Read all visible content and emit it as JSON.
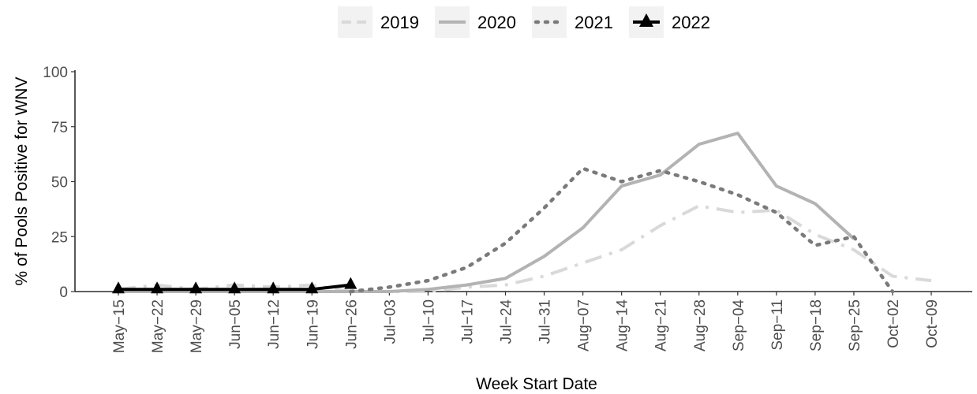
{
  "chart_data": {
    "type": "line",
    "title": "",
    "xlabel": "Week Start Date",
    "ylabel": "% of Pools Positive for WNV",
    "categories": [
      "May−15",
      "May−22",
      "May−29",
      "Jun−05",
      "Jun−12",
      "Jun−19",
      "Jun−26",
      "Jul−03",
      "Jul−10",
      "Jul−17",
      "Jul−24",
      "Jul−31",
      "Aug−07",
      "Aug−14",
      "Aug−21",
      "Aug−28",
      "Sep−04",
      "Sep−11",
      "Sep−18",
      "Sep−25",
      "Oct−02",
      "Oct−09"
    ],
    "ylim": [
      0,
      100
    ],
    "yticks": [
      0,
      25,
      50,
      75,
      100
    ],
    "grid": false,
    "legend_position": "top",
    "series": [
      {
        "name": "2019",
        "style": "dashdot",
        "color": "#d9d9d9",
        "marker": "none",
        "values": [
          1,
          3,
          1,
          3,
          2,
          3,
          0,
          0,
          0,
          2,
          3,
          7,
          13,
          19,
          30,
          39,
          36,
          37,
          26,
          19,
          7,
          5
        ]
      },
      {
        "name": "2020",
        "style": "solid",
        "color": "#b3b3b3",
        "marker": "none",
        "values": [
          0,
          0,
          0,
          0,
          0,
          0,
          0,
          0,
          1,
          3,
          6,
          16,
          29,
          48,
          53,
          67,
          72,
          48,
          40,
          24,
          null,
          null
        ]
      },
      {
        "name": "2021",
        "style": "dotted",
        "color": "#7a7a7a",
        "marker": "none",
        "values": [
          null,
          null,
          null,
          null,
          null,
          null,
          0,
          2,
          5,
          11,
          22,
          38,
          56,
          50,
          55,
          50,
          44,
          36,
          21,
          25,
          0,
          null
        ]
      },
      {
        "name": "2022",
        "style": "solid",
        "color": "#000000",
        "marker": "triangle",
        "values": [
          1,
          1,
          1,
          1,
          1,
          1,
          3,
          null,
          null,
          null,
          null,
          null,
          null,
          null,
          null,
          null,
          null,
          null,
          null,
          null,
          null,
          null
        ]
      }
    ]
  }
}
